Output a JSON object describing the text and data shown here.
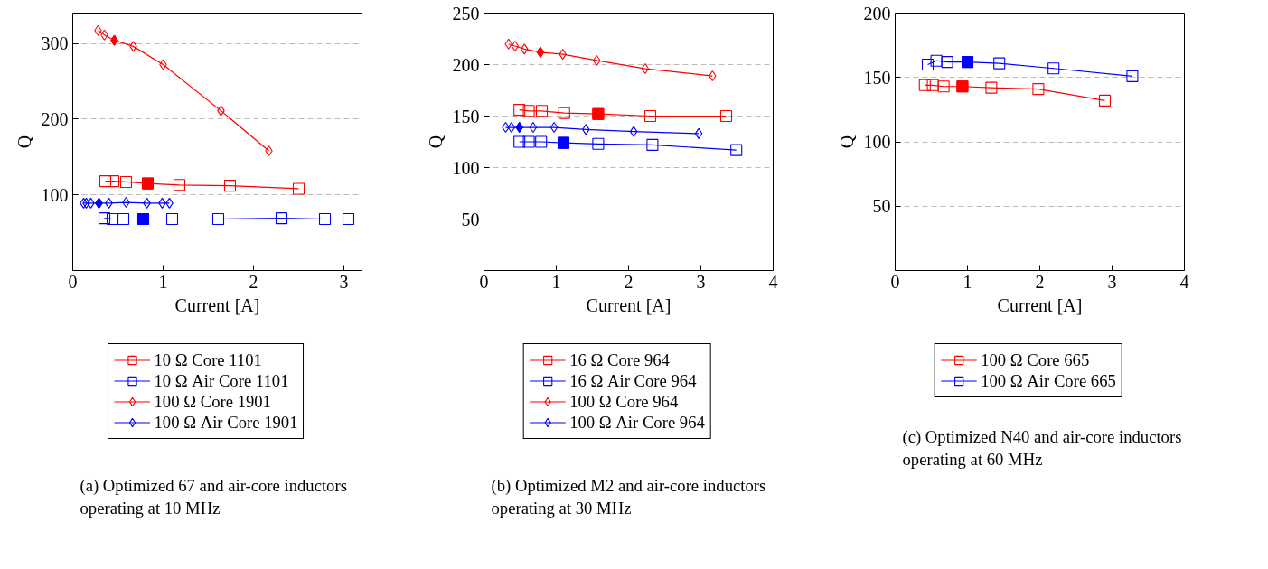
{
  "chart_data": [
    {
      "type": "line",
      "xlabel": "Current [A]",
      "ylabel": "Q",
      "xlim": [
        0,
        3.2
      ],
      "ylim": [
        0,
        340
      ],
      "xticks": [
        0,
        1,
        2,
        3
      ],
      "yticks": [
        100,
        200,
        300
      ],
      "grid": "y",
      "legend": "bottom",
      "line_style": "solid",
      "annotations": [
        "(a) Optimized 67 and air-core inductors operating at 10 MHz"
      ],
      "series": [
        {
          "name": "10 Ω Core 1101",
          "marker": "square",
          "color": "#ff0000",
          "x": [
            0.36,
            0.45,
            0.59,
            0.83,
            1.18,
            1.74,
            2.5
          ],
          "values": [
            118,
            118,
            117,
            115,
            113,
            112,
            108
          ]
        },
        {
          "name": "10 Ω Air Core 1101",
          "marker": "square",
          "color": "#0000ff",
          "x": [
            0.35,
            0.44,
            0.56,
            0.78,
            1.1,
            1.61,
            2.31,
            2.79,
            3.05
          ],
          "values": [
            69,
            68,
            68,
            68,
            68,
            68,
            69,
            68,
            68
          ]
        },
        {
          "name": "100 Ω Core 1901",
          "marker": "diamond",
          "color": "#ff0000",
          "x": [
            0.28,
            0.35,
            0.46,
            0.67,
            1.0,
            1.64,
            2.17
          ],
          "values": [
            317,
            311,
            304,
            296,
            272,
            211,
            158
          ]
        },
        {
          "name": "100 Ω Air Core 1901",
          "marker": "diamond",
          "color": "#0000ff",
          "x": [
            0.12,
            0.15,
            0.2,
            0.29,
            0.4,
            0.59,
            0.82,
            0.99,
            1.07
          ],
          "values": [
            89,
            89,
            89,
            89,
            89,
            90,
            89,
            89,
            89
          ]
        },
        {
          "type": "scatter",
          "marker": "square",
          "color": "#ff0000",
          "x": [
            0.83
          ],
          "values": [
            115
          ]
        },
        {
          "type": "scatter",
          "marker": "square",
          "color": "#0000ff",
          "x": [
            0.78
          ],
          "values": [
            68
          ]
        },
        {
          "type": "scatter",
          "marker": "diamond",
          "color": "#ff0000",
          "x": [
            0.46
          ],
          "values": [
            304
          ]
        },
        {
          "type": "scatter",
          "marker": "diamond",
          "color": "#0000ff",
          "x": [
            0.29
          ],
          "values": [
            89
          ]
        }
      ]
    },
    {
      "type": "line",
      "xlabel": "Current [A]",
      "ylabel": "Q",
      "xlim": [
        0,
        4
      ],
      "ylim": [
        0,
        250
      ],
      "xticks": [
        0,
        1,
        2,
        3,
        4
      ],
      "yticks": [
        50,
        100,
        150,
        200,
        250
      ],
      "grid": "y",
      "legend": "bottom",
      "line_style": "solid",
      "annotations": [
        "(b) Optimized M2 and air-core inductors operating at 30 MHz"
      ],
      "series": [
        {
          "name": "16 Ω Core 964",
          "marker": "square",
          "color": "#ff0000",
          "x": [
            0.49,
            0.62,
            0.8,
            1.11,
            1.58,
            2.3,
            3.35
          ],
          "values": [
            156,
            155,
            155,
            153,
            152,
            150,
            150
          ]
        },
        {
          "name": "16 Ω Air Core 964",
          "marker": "square",
          "color": "#0000ff",
          "x": [
            0.49,
            0.62,
            0.79,
            1.1,
            1.58,
            2.33,
            3.49
          ],
          "values": [
            125,
            125,
            125,
            124,
            123,
            122,
            117
          ]
        },
        {
          "name": "100 Ω Core 964",
          "marker": "diamond",
          "color": "#ff0000",
          "x": [
            0.34,
            0.43,
            0.56,
            0.78,
            1.09,
            1.56,
            2.23,
            3.16
          ],
          "values": [
            220,
            218,
            215,
            212,
            210,
            204,
            196,
            189
          ]
        },
        {
          "name": "100 Ω Air Core 964",
          "marker": "diamond",
          "color": "#0000ff",
          "x": [
            0.3,
            0.38,
            0.49,
            0.68,
            0.97,
            1.41,
            2.07,
            2.97
          ],
          "values": [
            139,
            139,
            139,
            139,
            139,
            137,
            135,
            133
          ]
        },
        {
          "type": "scatter",
          "marker": "square",
          "color": "#ff0000",
          "x": [
            1.58
          ],
          "values": [
            152
          ]
        },
        {
          "type": "scatter",
          "marker": "square",
          "color": "#0000ff",
          "x": [
            1.1
          ],
          "values": [
            124
          ]
        },
        {
          "type": "scatter",
          "marker": "diamond",
          "color": "#ff0000",
          "x": [
            0.78
          ],
          "values": [
            212
          ]
        },
        {
          "type": "scatter",
          "marker": "diamond",
          "color": "#0000ff",
          "x": [
            0.49
          ],
          "values": [
            139
          ]
        }
      ]
    },
    {
      "type": "line",
      "xlabel": "Current [A]",
      "ylabel": "Q",
      "xlim": [
        0,
        4
      ],
      "ylim": [
        0,
        200
      ],
      "xticks": [
        0,
        1,
        2,
        3,
        4
      ],
      "yticks": [
        50,
        100,
        150,
        200
      ],
      "grid": "y",
      "legend": "bottom",
      "line_style": "solid",
      "annotations": [
        "(c) Optimized N40 and air-core inductors operating at 60 MHz"
      ],
      "series": [
        {
          "name": "100 Ω Core 665",
          "marker": "square",
          "color": "#ff0000",
          "x": [
            0.41,
            0.52,
            0.67,
            0.93,
            1.33,
            1.98,
            2.9
          ],
          "values": [
            144,
            144,
            143,
            143,
            142,
            141,
            132
          ]
        },
        {
          "name": "100 Ω Air Core 665",
          "marker": "square",
          "color": "#0000ff",
          "x": [
            0.45,
            0.57,
            0.72,
            1.0,
            1.44,
            2.19,
            3.28
          ],
          "values": [
            160,
            163,
            162,
            162,
            161,
            157,
            151
          ]
        },
        {
          "type": "scatter",
          "marker": "square",
          "color": "#ff0000",
          "x": [
            0.93
          ],
          "values": [
            143
          ]
        },
        {
          "type": "scatter",
          "marker": "square",
          "color": "#0000ff",
          "x": [
            1.0
          ],
          "values": [
            162
          ]
        }
      ]
    }
  ]
}
